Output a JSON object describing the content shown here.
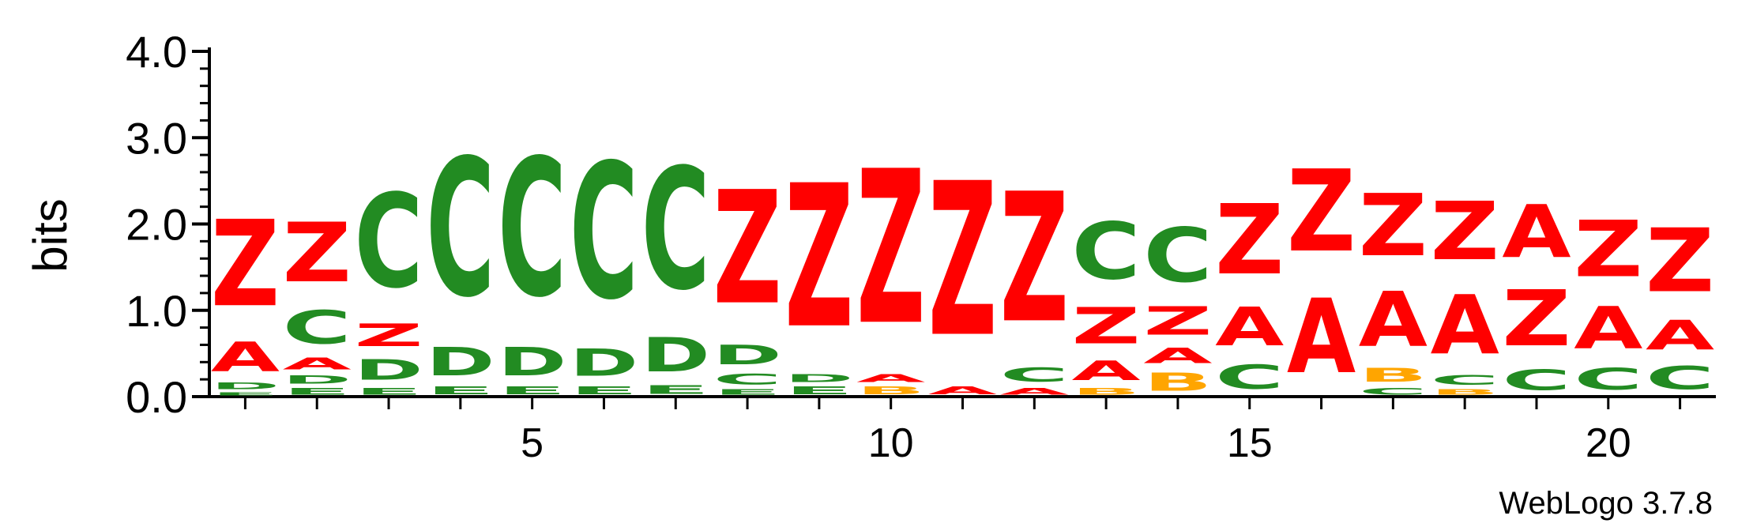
{
  "footer": "WebLogo 3.7.8",
  "colors": {
    "red": "#ff0000",
    "green": "#228b22",
    "orange": "#ffa500",
    "axis": "#000000"
  },
  "chart_data": {
    "type": "sequence-logo",
    "title": "",
    "xlabel": "",
    "ylabel": "bits",
    "ylim": [
      0,
      4
    ],
    "y_ticks": [
      "0.0",
      "1.0",
      "2.0",
      "3.0",
      "4.0"
    ],
    "x_ticks": [
      "5",
      "10",
      "15",
      "20"
    ],
    "letter_colors": {
      "Z": "#ff0000",
      "A": "#ff0000",
      "C": "#228b22",
      "D": "#228b22",
      "E": "#228b22",
      "B": "#ffa500"
    },
    "positions": [
      {
        "position": 1,
        "stack": [
          {
            "letter": "E",
            "height": 0.06
          },
          {
            "letter": "D",
            "height": 0.12
          },
          {
            "letter": "A",
            "height": 0.55
          },
          {
            "letter": "Z",
            "height": 1.6
          }
        ]
      },
      {
        "position": 2,
        "stack": [
          {
            "letter": "E",
            "height": 0.12
          },
          {
            "letter": "D",
            "height": 0.15
          },
          {
            "letter": "A",
            "height": 0.22
          },
          {
            "letter": "C",
            "height": 0.62
          },
          {
            "letter": "Z",
            "height": 1.1
          }
        ]
      },
      {
        "position": 3,
        "stack": [
          {
            "letter": "E",
            "height": 0.12
          },
          {
            "letter": "D",
            "height": 0.38
          },
          {
            "letter": "Z",
            "height": 0.42
          },
          {
            "letter": "C",
            "height": 1.74
          }
        ]
      },
      {
        "position": 4,
        "stack": [
          {
            "letter": "E",
            "height": 0.14
          },
          {
            "letter": "D",
            "height": 0.52
          },
          {
            "letter": "C",
            "height": 2.55
          }
        ]
      },
      {
        "position": 5,
        "stack": [
          {
            "letter": "E",
            "height": 0.14
          },
          {
            "letter": "D",
            "height": 0.52
          },
          {
            "letter": "C",
            "height": 2.55
          }
        ]
      },
      {
        "position": 6,
        "stack": [
          {
            "letter": "E",
            "height": 0.14
          },
          {
            "letter": "D",
            "height": 0.5
          },
          {
            "letter": "C",
            "height": 2.51
          }
        ]
      },
      {
        "position": 7,
        "stack": [
          {
            "letter": "E",
            "height": 0.16
          },
          {
            "letter": "D",
            "height": 0.64
          },
          {
            "letter": "C",
            "height": 2.25
          }
        ]
      },
      {
        "position": 8,
        "stack": [
          {
            "letter": "E",
            "height": 0.1
          },
          {
            "letter": "C",
            "height": 0.2
          },
          {
            "letter": "D",
            "height": 0.36
          },
          {
            "letter": "Z",
            "height": 2.1
          }
        ]
      },
      {
        "position": 9,
        "stack": [
          {
            "letter": "E",
            "height": 0.14
          },
          {
            "letter": "D",
            "height": 0.14
          },
          {
            "letter": "Z",
            "height": 2.65
          }
        ]
      },
      {
        "position": 10,
        "stack": [
          {
            "letter": "B",
            "height": 0.14
          },
          {
            "letter": "A",
            "height": 0.14
          },
          {
            "letter": "Z",
            "height": 2.85
          }
        ]
      },
      {
        "position": 11,
        "stack": [
          {
            "letter": "A",
            "height": 0.14
          },
          {
            "letter": "Z",
            "height": 2.85
          }
        ]
      },
      {
        "position": 12,
        "stack": [
          {
            "letter": "A",
            "height": 0.12
          },
          {
            "letter": "C",
            "height": 0.27
          },
          {
            "letter": "Z",
            "height": 2.4
          }
        ]
      },
      {
        "position": 13,
        "stack": [
          {
            "letter": "B",
            "height": 0.12
          },
          {
            "letter": "A",
            "height": 0.36
          },
          {
            "letter": "Z",
            "height": 0.67
          },
          {
            "letter": "C",
            "height": 1.06
          }
        ]
      },
      {
        "position": 14,
        "stack": [
          {
            "letter": "B",
            "height": 0.33
          },
          {
            "letter": "A",
            "height": 0.28
          },
          {
            "letter": "Z",
            "height": 0.52
          },
          {
            "letter": "C",
            "height": 1.01
          }
        ]
      },
      {
        "position": 15,
        "stack": [
          {
            "letter": "C",
            "height": 0.45
          },
          {
            "letter": "A",
            "height": 0.71
          },
          {
            "letter": "Z",
            "height": 1.3
          }
        ]
      },
      {
        "position": 16,
        "stack": [
          {
            "letter": "A",
            "height": 1.38
          },
          {
            "letter": "Z",
            "height": 1.52
          }
        ]
      },
      {
        "position": 17,
        "stack": [
          {
            "letter": "C",
            "height": 0.12
          },
          {
            "letter": "B",
            "height": 0.26
          },
          {
            "letter": "A",
            "height": 1.02
          },
          {
            "letter": "Z",
            "height": 1.15
          }
        ]
      },
      {
        "position": 18,
        "stack": [
          {
            "letter": "B",
            "height": 0.1
          },
          {
            "letter": "C",
            "height": 0.18
          },
          {
            "letter": "A",
            "height": 1.09
          },
          {
            "letter": "Z",
            "height": 1.08
          }
        ]
      },
      {
        "position": 19,
        "stack": [
          {
            "letter": "C",
            "height": 0.38
          },
          {
            "letter": "Z",
            "height": 1.04
          },
          {
            "letter": "A",
            "height": 0.98
          }
        ]
      },
      {
        "position": 20,
        "stack": [
          {
            "letter": "C",
            "height": 0.4
          },
          {
            "letter": "A",
            "height": 0.78
          },
          {
            "letter": "Z",
            "height": 1.05
          }
        ]
      },
      {
        "position": 21,
        "stack": [
          {
            "letter": "C",
            "height": 0.43
          },
          {
            "letter": "A",
            "height": 0.55
          },
          {
            "letter": "Z",
            "height": 1.18
          }
        ]
      }
    ]
  }
}
